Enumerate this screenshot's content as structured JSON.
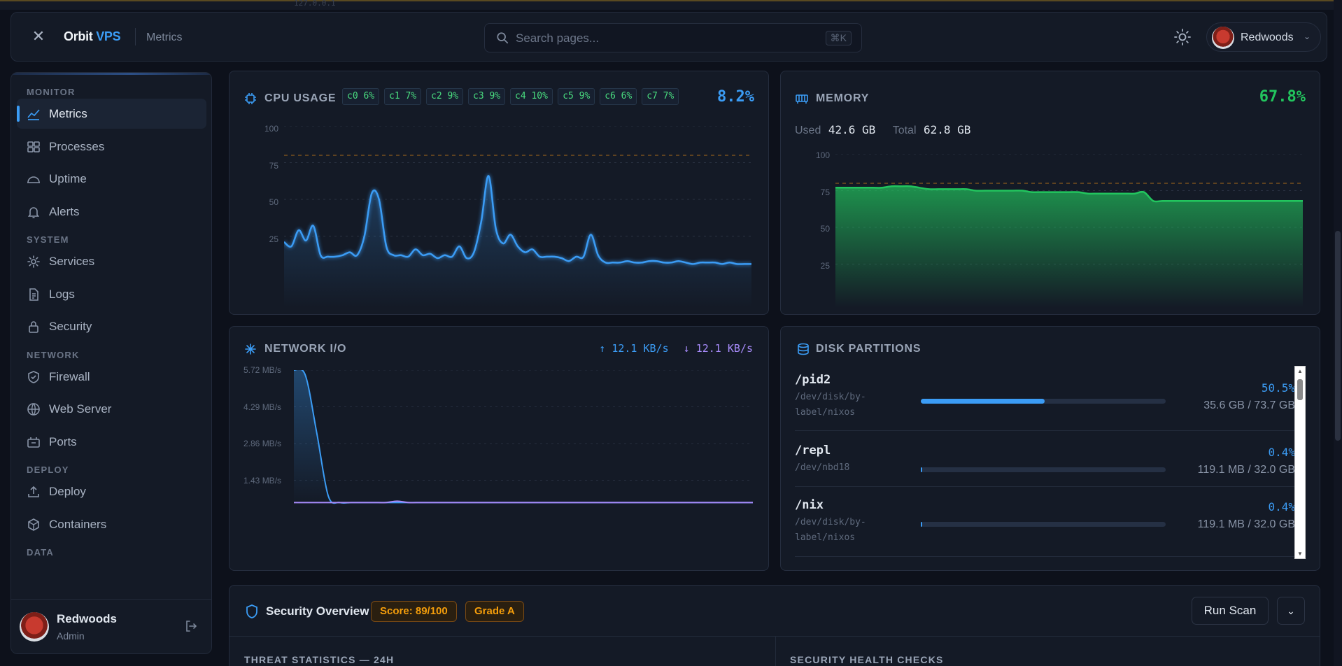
{
  "background_text": "127.0.0.1",
  "header": {
    "brand_main": "Orbit",
    "brand_accent": "VPS",
    "breadcrumb": "Metrics",
    "search_placeholder": "Search pages...",
    "search_shortcut": "⌘K",
    "user_name": "Redwoods"
  },
  "sidebar": {
    "sections": [
      {
        "title": "MONITOR",
        "items": [
          {
            "label": "Metrics",
            "icon": "chart-line-icon",
            "active": true
          },
          {
            "label": "Processes",
            "icon": "grid-icon"
          },
          {
            "label": "Uptime",
            "icon": "gauge-icon"
          },
          {
            "label": "Alerts",
            "icon": "bell-icon"
          }
        ]
      },
      {
        "title": "SYSTEM",
        "items": [
          {
            "label": "Services",
            "icon": "gear-icon"
          },
          {
            "label": "Logs",
            "icon": "file-icon"
          },
          {
            "label": "Security",
            "icon": "lock-icon"
          }
        ]
      },
      {
        "title": "NETWORK",
        "items": [
          {
            "label": "Firewall",
            "icon": "shield-icon"
          },
          {
            "label": "Web Server",
            "icon": "globe-icon"
          },
          {
            "label": "Ports",
            "icon": "plug-icon"
          }
        ]
      },
      {
        "title": "DEPLOY",
        "items": [
          {
            "label": "Deploy",
            "icon": "upload-icon"
          },
          {
            "label": "Containers",
            "icon": "box-icon"
          }
        ]
      },
      {
        "title": "DATA",
        "items": []
      }
    ],
    "footer": {
      "name": "Redwoods",
      "role": "Admin"
    }
  },
  "cpu": {
    "title": "CPU USAGE",
    "cores": [
      "c0 6%",
      "c1 7%",
      "c2 9%",
      "c3 9%",
      "c4 10%",
      "c5 9%",
      "c6 6%",
      "c7 7%"
    ],
    "value": "8.2%",
    "y_ticks": [
      "100",
      "75",
      "50",
      "25"
    ],
    "threshold": 80,
    "color": "#3b9cf5",
    "chart_data": {
      "type": "area",
      "ylim": [
        0,
        100
      ],
      "values": [
        21,
        18,
        29,
        22,
        32,
        12,
        11,
        11,
        12,
        14,
        12,
        25,
        54,
        50,
        18,
        12,
        12,
        11,
        16,
        12,
        13,
        10,
        12,
        11,
        18,
        10,
        14,
        35,
        66,
        30,
        20,
        26,
        18,
        14,
        16,
        11,
        11,
        11,
        10,
        8,
        11,
        11,
        26,
        12,
        7,
        7,
        7,
        8,
        7,
        7,
        8,
        8,
        7,
        7,
        8,
        7,
        6,
        7,
        7,
        7,
        6,
        7,
        6,
        6,
        6
      ]
    }
  },
  "memory": {
    "title": "MEMORY",
    "value": "67.8%",
    "used_label": "Used",
    "used_value": "42.6 GB",
    "total_label": "Total",
    "total_value": "62.8 GB",
    "y_ticks": [
      "100",
      "75",
      "50",
      "25"
    ],
    "threshold": 80,
    "color": "#22c55e",
    "chart_data": {
      "type": "area",
      "ylim": [
        0,
        100
      ],
      "values": [
        77,
        77,
        77,
        77,
        77,
        77,
        78,
        78,
        78,
        77,
        76,
        76,
        76,
        76,
        76,
        75,
        75,
        75,
        75,
        75,
        75,
        74,
        74,
        74,
        74,
        74,
        74,
        73,
        73,
        73,
        73,
        73,
        73,
        74,
        68,
        68,
        68,
        68,
        68,
        68,
        68,
        68,
        68,
        68,
        68,
        68,
        68,
        68,
        68,
        68,
        68
      ]
    }
  },
  "network": {
    "title": "NETWORK I/O",
    "up_label": "↑ 12.1 KB/s",
    "down_label": "↓ 12.1 KB/s",
    "y_ticks": [
      "5.72 MB/s",
      "4.29 MB/s",
      "2.86 MB/s",
      "1.43 MB/s"
    ],
    "up_color": "#3b9cf5",
    "down_color": "#a78bfa",
    "chart_data": {
      "type": "line",
      "ylim": [
        0,
        5.72
      ],
      "series": [
        {
          "values": [
            5.72,
            5.5,
            3.0,
            0.3,
            0.02,
            0.02,
            0.02,
            0.02,
            0.02,
            0.02,
            0.02,
            0.02,
            0.02,
            0.02,
            0.02,
            0.02,
            0.02,
            0.02,
            0.02,
            0.02,
            0.02,
            0.02,
            0.02,
            0.02,
            0.02,
            0.02,
            0.02,
            0.02,
            0.02,
            0.02,
            0.02,
            0.02,
            0.02,
            0.02,
            0.02,
            0.02,
            0.02,
            0.02,
            0.02,
            0.02,
            0.02
          ]
        },
        {
          "values": [
            0.02,
            0.02,
            0.02,
            0.02,
            0.02,
            0.02,
            0.02,
            0.02,
            0.02,
            0.08,
            0.02,
            0.02,
            0.02,
            0.02,
            0.02,
            0.02,
            0.02,
            0.02,
            0.02,
            0.02,
            0.02,
            0.02,
            0.02,
            0.02,
            0.02,
            0.02,
            0.02,
            0.02,
            0.02,
            0.02,
            0.02,
            0.02,
            0.02,
            0.02,
            0.02,
            0.02,
            0.02,
            0.02,
            0.02,
            0.02,
            0.02
          ]
        }
      ]
    }
  },
  "disk": {
    "title": "DISK PARTITIONS",
    "partitions": [
      {
        "mount": "/pid2",
        "device_line1": "/dev/disk/by-",
        "device_line2": "label/nixos",
        "percent": "50.5%",
        "fill": 0.505,
        "size": "35.6 GB / 73.7 GB"
      },
      {
        "mount": "/repl",
        "device_line1": "/dev/nbd18",
        "device_line2": "",
        "percent": "0.4%",
        "fill": 0.004,
        "size": "119.1 MB / 32.0 GB"
      },
      {
        "mount": "/nix",
        "device_line1": "/dev/disk/by-",
        "device_line2": "label/nixos",
        "percent": "0.4%",
        "fill": 0.004,
        "size": "119.1 MB / 32.0 GB"
      }
    ]
  },
  "security": {
    "title": "Security Overview",
    "score": "Score: 89/100",
    "grade": "Grade A",
    "run_scan": "Run Scan",
    "threat_heading": "THREAT STATISTICS — 24H",
    "health_heading": "SECURITY HEALTH CHECKS"
  }
}
